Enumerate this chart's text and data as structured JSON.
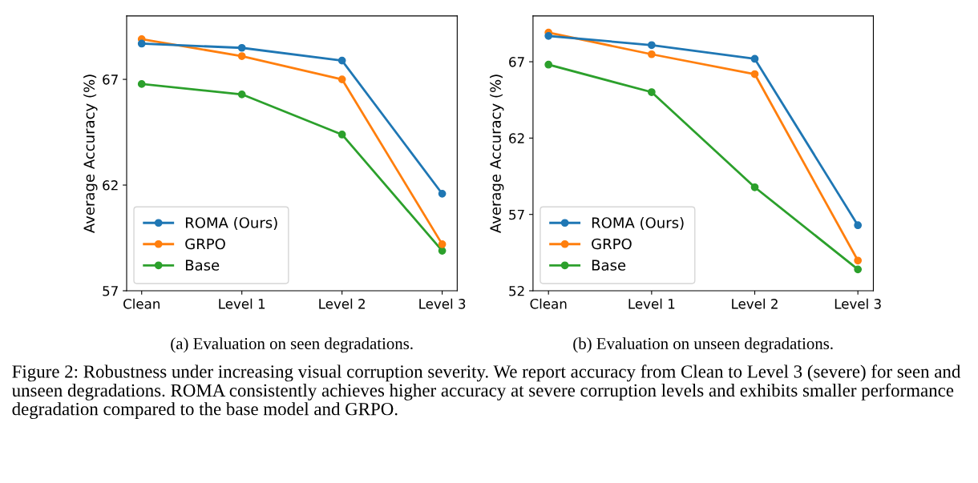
{
  "chart_data": [
    {
      "type": "line",
      "title": "(a) Evaluation on seen degradations.",
      "ylabel": "Average Accuracy (%)",
      "categories": [
        "Clean",
        "Level 1",
        "Level 2",
        "Level 3"
      ],
      "ylim": [
        57,
        70
      ],
      "yticks": [
        57,
        62,
        67
      ],
      "legend": "bottom left",
      "grid": false,
      "marker": "circle",
      "line_style": "solid",
      "series": [
        {
          "name": "ROMA (Ours)",
          "color": "#1f77b4",
          "values": [
            68.69,
            68.49,
            67.89,
            61.59
          ]
        },
        {
          "name": "GRPO",
          "color": "#ff7f0e",
          "values": [
            68.9,
            68.1,
            67.0,
            59.2
          ]
        },
        {
          "name": "Base",
          "color": "#2ca02c",
          "values": [
            66.78,
            66.29,
            64.39,
            58.89
          ]
        }
      ],
      "annotations": [
        "Figure 2: Robustness under increasing visual corruption severity. We report accuracy from Clean to Level 3 (severe) for seen and unseen degradations. ROMA consistently achieves higher accuracy at severe corruption levels and exhibits smaller performance degradation compared to the base model and GRPO."
      ]
    },
    {
      "type": "line",
      "title": "(b) Evaluation on unseen degradations.",
      "ylabel": "Average Accuracy (%)",
      "categories": [
        "Clean",
        "Level 1",
        "Level 2",
        "Level 3"
      ],
      "ylim": [
        52,
        70
      ],
      "yticks": [
        52,
        57,
        62,
        67
      ],
      "legend": "bottom left",
      "grid": false,
      "marker": "circle",
      "line_style": "solid",
      "series": [
        {
          "name": "ROMA (Ours)",
          "color": "#1f77b4",
          "values": [
            68.69,
            68.09,
            67.19,
            56.29
          ]
        },
        {
          "name": "GRPO",
          "color": "#ff7f0e",
          "values": [
            68.91,
            67.49,
            66.19,
            53.98
          ]
        },
        {
          "name": "Base",
          "color": "#2ca02c",
          "values": [
            66.81,
            65.01,
            58.78,
            53.4
          ]
        }
      ]
    }
  ]
}
